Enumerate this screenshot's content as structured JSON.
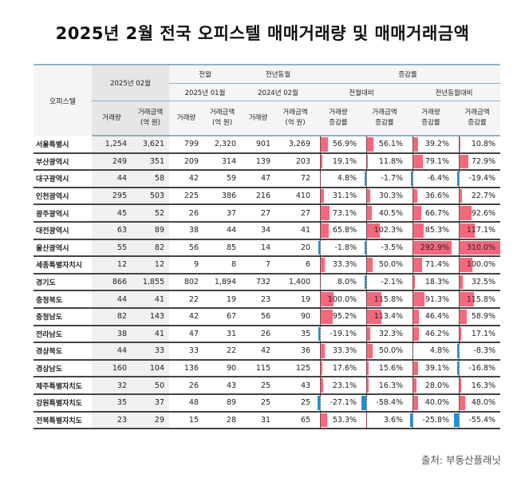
{
  "title": "2025년 2월 전국 오피스텔 매매거래량 및 매매거래금액",
  "header": {
    "region_col": "오피스텔",
    "current_period": "2025년 02월",
    "prev_month_group": "전월",
    "prev_month_period": "2025년 01월",
    "prev_year_group": "전년동월",
    "prev_year_period": "2024년 02월",
    "change_group": "증감률",
    "mom_group": "전월대비",
    "yoy_group": "전년동월대비",
    "volume_label": "거래량",
    "amount_label_1": "거래금액",
    "amount_label_2": "(억 원)",
    "vol_change_1": "거래량",
    "vol_change_2": "증감률",
    "amt_change_1": "거래금액",
    "amt_change_2": "증감률"
  },
  "colors": {
    "positive_bar": "#f4687c",
    "negative_bar": "#1d8fd6",
    "header_rule": "#8fb3c9"
  },
  "rows": [
    {
      "region": "서울특별시",
      "vol_2502": "1,254",
      "amt_2502": "3,621",
      "vol_2501": "799",
      "amt_2501": "2,320",
      "vol_2402": "901",
      "amt_2402": "3,269",
      "mom_vol": "56.9%",
      "mom_amt": "56.1%",
      "yoy_vol": "39.2%",
      "yoy_amt": "10.8%"
    },
    {
      "region": "부산광역시",
      "vol_2502": "249",
      "amt_2502": "351",
      "vol_2501": "209",
      "amt_2501": "314",
      "vol_2402": "139",
      "amt_2402": "203",
      "mom_vol": "19.1%",
      "mom_amt": "11.8%",
      "yoy_vol": "79.1%",
      "yoy_amt": "72.9%"
    },
    {
      "region": "대구광역시",
      "vol_2502": "44",
      "amt_2502": "58",
      "vol_2501": "42",
      "amt_2501": "59",
      "vol_2402": "47",
      "amt_2402": "72",
      "mom_vol": "4.8%",
      "mom_amt": "-1.7%",
      "yoy_vol": "-6.4%",
      "yoy_amt": "-19.4%"
    },
    {
      "region": "인천광역시",
      "vol_2502": "295",
      "amt_2502": "503",
      "vol_2501": "225",
      "amt_2501": "386",
      "vol_2402": "216",
      "amt_2402": "410",
      "mom_vol": "31.1%",
      "mom_amt": "30.3%",
      "yoy_vol": "36.6%",
      "yoy_amt": "22.7%"
    },
    {
      "region": "광주광역시",
      "vol_2502": "45",
      "amt_2502": "52",
      "vol_2501": "26",
      "amt_2501": "37",
      "vol_2402": "27",
      "amt_2402": "27",
      "mom_vol": "73.1%",
      "mom_amt": "40.5%",
      "yoy_vol": "66.7%",
      "yoy_amt": "92.6%"
    },
    {
      "region": "대전광역시",
      "vol_2502": "63",
      "amt_2502": "89",
      "vol_2501": "38",
      "amt_2501": "44",
      "vol_2402": "34",
      "amt_2402": "41",
      "mom_vol": "65.8%",
      "mom_amt": "102.3%",
      "yoy_vol": "85.3%",
      "yoy_amt": "117.1%"
    },
    {
      "region": "울산광역시",
      "vol_2502": "55",
      "amt_2502": "82",
      "vol_2501": "56",
      "amt_2501": "85",
      "vol_2402": "14",
      "amt_2402": "20",
      "mom_vol": "-1.8%",
      "mom_amt": "-3.5%",
      "yoy_vol": "292.9%",
      "yoy_amt": "310.0%"
    },
    {
      "region": "세종특별자치시",
      "vol_2502": "12",
      "amt_2502": "12",
      "vol_2501": "9",
      "amt_2501": "8",
      "vol_2402": "7",
      "amt_2402": "6",
      "mom_vol": "33.3%",
      "mom_amt": "50.0%",
      "yoy_vol": "71.4%",
      "yoy_amt": "100.0%"
    },
    {
      "region": "경기도",
      "vol_2502": "866",
      "amt_2502": "1,855",
      "vol_2501": "802",
      "amt_2501": "1,894",
      "vol_2402": "732",
      "amt_2402": "1,400",
      "mom_vol": "8.0%",
      "mom_amt": "-2.1%",
      "yoy_vol": "18.3%",
      "yoy_amt": "32.5%"
    },
    {
      "region": "충청북도",
      "vol_2502": "44",
      "amt_2502": "41",
      "vol_2501": "22",
      "amt_2501": "19",
      "vol_2402": "23",
      "amt_2402": "19",
      "mom_vol": "100.0%",
      "mom_amt": "115.8%",
      "yoy_vol": "91.3%",
      "yoy_amt": "115.8%"
    },
    {
      "region": "충청남도",
      "vol_2502": "82",
      "amt_2502": "143",
      "vol_2501": "42",
      "amt_2501": "67",
      "vol_2402": "56",
      "amt_2402": "90",
      "mom_vol": "95.2%",
      "mom_amt": "113.4%",
      "yoy_vol": "46.4%",
      "yoy_amt": "58.9%"
    },
    {
      "region": "전라남도",
      "vol_2502": "38",
      "amt_2502": "41",
      "vol_2501": "47",
      "amt_2501": "31",
      "vol_2402": "26",
      "amt_2402": "35",
      "mom_vol": "-19.1%",
      "mom_amt": "32.3%",
      "yoy_vol": "46.2%",
      "yoy_amt": "17.1%"
    },
    {
      "region": "경상북도",
      "vol_2502": "44",
      "amt_2502": "33",
      "vol_2501": "33",
      "amt_2501": "22",
      "vol_2402": "42",
      "amt_2402": "36",
      "mom_vol": "33.3%",
      "mom_amt": "50.0%",
      "yoy_vol": "4.8%",
      "yoy_amt": "-8.3%"
    },
    {
      "region": "경상남도",
      "vol_2502": "160",
      "amt_2502": "104",
      "vol_2501": "136",
      "amt_2501": "90",
      "vol_2402": "115",
      "amt_2402": "125",
      "mom_vol": "17.6%",
      "mom_amt": "15.6%",
      "yoy_vol": "39.1%",
      "yoy_amt": "-16.8%"
    },
    {
      "region": "제주특별자치도",
      "vol_2502": "32",
      "amt_2502": "50",
      "vol_2501": "26",
      "amt_2501": "43",
      "vol_2402": "25",
      "amt_2402": "43",
      "mom_vol": "23.1%",
      "mom_amt": "16.3%",
      "yoy_vol": "28.0%",
      "yoy_amt": "16.3%"
    },
    {
      "region": "강원특별자치도",
      "vol_2502": "35",
      "amt_2502": "37",
      "vol_2501": "48",
      "amt_2501": "89",
      "vol_2402": "25",
      "amt_2402": "25",
      "mom_vol": "-27.1%",
      "mom_amt": "-58.4%",
      "yoy_vol": "40.0%",
      "yoy_amt": "48.0%"
    },
    {
      "region": "전북특별자치도",
      "vol_2502": "23",
      "amt_2502": "29",
      "vol_2501": "15",
      "amt_2501": "28",
      "vol_2402": "31",
      "amt_2402": "65",
      "mom_vol": "53.3%",
      "mom_amt": "3.6%",
      "yoy_vol": "-25.8%",
      "yoy_amt": "-55.4%"
    }
  ],
  "source": "출처: 부동산플래닛"
}
